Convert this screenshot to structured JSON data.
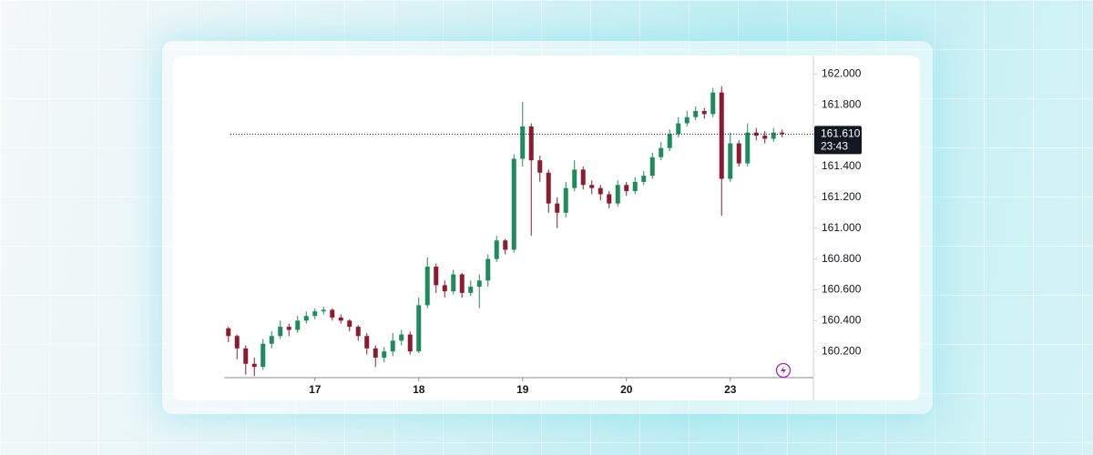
{
  "chart_data": {
    "type": "candlestick",
    "categories": [
      null,
      null,
      null,
      null,
      null,
      null,
      null,
      null,
      null,
      null,
      "17",
      null,
      null,
      null,
      null,
      null,
      null,
      null,
      null,
      null,
      null,
      null,
      "18",
      null,
      null,
      null,
      null,
      null,
      null,
      null,
      null,
      null,
      null,
      null,
      "19",
      null,
      null,
      null,
      null,
      null,
      null,
      null,
      null,
      null,
      null,
      null,
      "20",
      null,
      null,
      null,
      null,
      null,
      null,
      null,
      null,
      null,
      null,
      null,
      "23",
      null,
      null,
      null,
      null,
      null,
      null
    ],
    "open": [
      160.35,
      160.3,
      160.22,
      160.12,
      160.1,
      160.25,
      160.3,
      160.36,
      160.34,
      160.4,
      160.43,
      160.46,
      160.47,
      160.42,
      160.4,
      160.36,
      160.3,
      160.22,
      160.16,
      160.2,
      160.27,
      160.31,
      160.2,
      160.5,
      160.75,
      160.63,
      160.59,
      160.7,
      160.58,
      160.62,
      160.66,
      160.8,
      160.92,
      160.86,
      161.45,
      161.66,
      161.44,
      161.36,
      161.16,
      161.1,
      161.26,
      161.38,
      161.28,
      161.26,
      161.22,
      161.16,
      161.28,
      161.24,
      161.3,
      161.34,
      161.46,
      161.52,
      161.61,
      161.68,
      161.72,
      161.76,
      161.74,
      161.88,
      161.32,
      161.55,
      161.42,
      161.62,
      161.6,
      161.58,
      161.62
    ],
    "high": [
      160.36,
      160.31,
      160.24,
      160.16,
      160.28,
      160.33,
      160.4,
      160.38,
      160.43,
      160.46,
      160.48,
      160.49,
      160.48,
      160.44,
      160.41,
      160.37,
      160.32,
      160.24,
      160.23,
      160.32,
      160.34,
      160.33,
      160.55,
      160.81,
      160.77,
      160.66,
      160.73,
      160.71,
      160.66,
      160.7,
      160.83,
      160.95,
      160.93,
      161.48,
      161.82,
      161.68,
      161.47,
      161.38,
      161.2,
      161.3,
      161.44,
      161.4,
      161.31,
      161.28,
      161.24,
      161.31,
      161.3,
      161.33,
      161.37,
      161.49,
      161.56,
      161.64,
      161.72,
      161.76,
      161.79,
      161.78,
      161.91,
      161.92,
      161.62,
      161.57,
      161.68,
      161.65,
      161.63,
      161.65,
      161.64
    ],
    "low": [
      160.26,
      160.15,
      160.05,
      160.04,
      160.08,
      160.22,
      160.28,
      160.3,
      160.32,
      160.38,
      160.41,
      160.44,
      160.4,
      160.38,
      160.33,
      160.27,
      160.18,
      160.1,
      160.13,
      160.17,
      160.24,
      160.18,
      160.19,
      160.48,
      160.58,
      160.55,
      160.57,
      160.55,
      160.56,
      160.48,
      160.62,
      160.78,
      160.83,
      160.84,
      161.4,
      160.95,
      161.3,
      161.1,
      161.0,
      161.07,
      161.24,
      161.25,
      161.22,
      161.18,
      161.13,
      161.14,
      161.21,
      161.22,
      161.28,
      161.32,
      161.44,
      161.5,
      161.59,
      161.66,
      161.7,
      161.71,
      161.72,
      161.08,
      161.3,
      161.4,
      161.4,
      161.57,
      161.55,
      161.56,
      161.59
    ],
    "close": [
      160.3,
      160.22,
      160.12,
      160.1,
      160.25,
      160.3,
      160.36,
      160.34,
      160.4,
      160.43,
      160.46,
      160.47,
      160.42,
      160.4,
      160.36,
      160.3,
      160.22,
      160.16,
      160.2,
      160.27,
      160.31,
      160.2,
      160.5,
      160.75,
      160.63,
      160.59,
      160.7,
      160.58,
      160.62,
      160.66,
      160.8,
      160.92,
      160.86,
      161.45,
      161.66,
      161.44,
      161.36,
      161.16,
      161.1,
      161.26,
      161.38,
      161.28,
      161.26,
      161.22,
      161.16,
      161.28,
      161.24,
      161.3,
      161.34,
      161.46,
      161.52,
      161.61,
      161.68,
      161.72,
      161.76,
      161.74,
      161.88,
      161.32,
      161.55,
      161.42,
      161.62,
      161.6,
      161.58,
      161.62,
      161.61
    ],
    "up_color": "#1f8a5b",
    "down_color": "#8b1c30",
    "ylim": [
      160.03,
      162.12
    ],
    "yticks": [
      {
        "value": 160.2,
        "label": "160.200"
      },
      {
        "value": 160.4,
        "label": "160.400"
      },
      {
        "value": 160.6,
        "label": "160.600"
      },
      {
        "value": 160.8,
        "label": "160.800"
      },
      {
        "value": 161.0,
        "label": "161.000"
      },
      {
        "value": 161.2,
        "label": "161.200"
      },
      {
        "value": 161.4,
        "label": "161.400"
      },
      {
        "value": 161.6,
        "label": "161.600"
      },
      {
        "value": 161.8,
        "label": "161.800"
      },
      {
        "value": 162.0,
        "label": "162.000"
      }
    ],
    "last_price": {
      "value": 161.61,
      "label": "161.610"
    },
    "countdown": "23:43"
  }
}
